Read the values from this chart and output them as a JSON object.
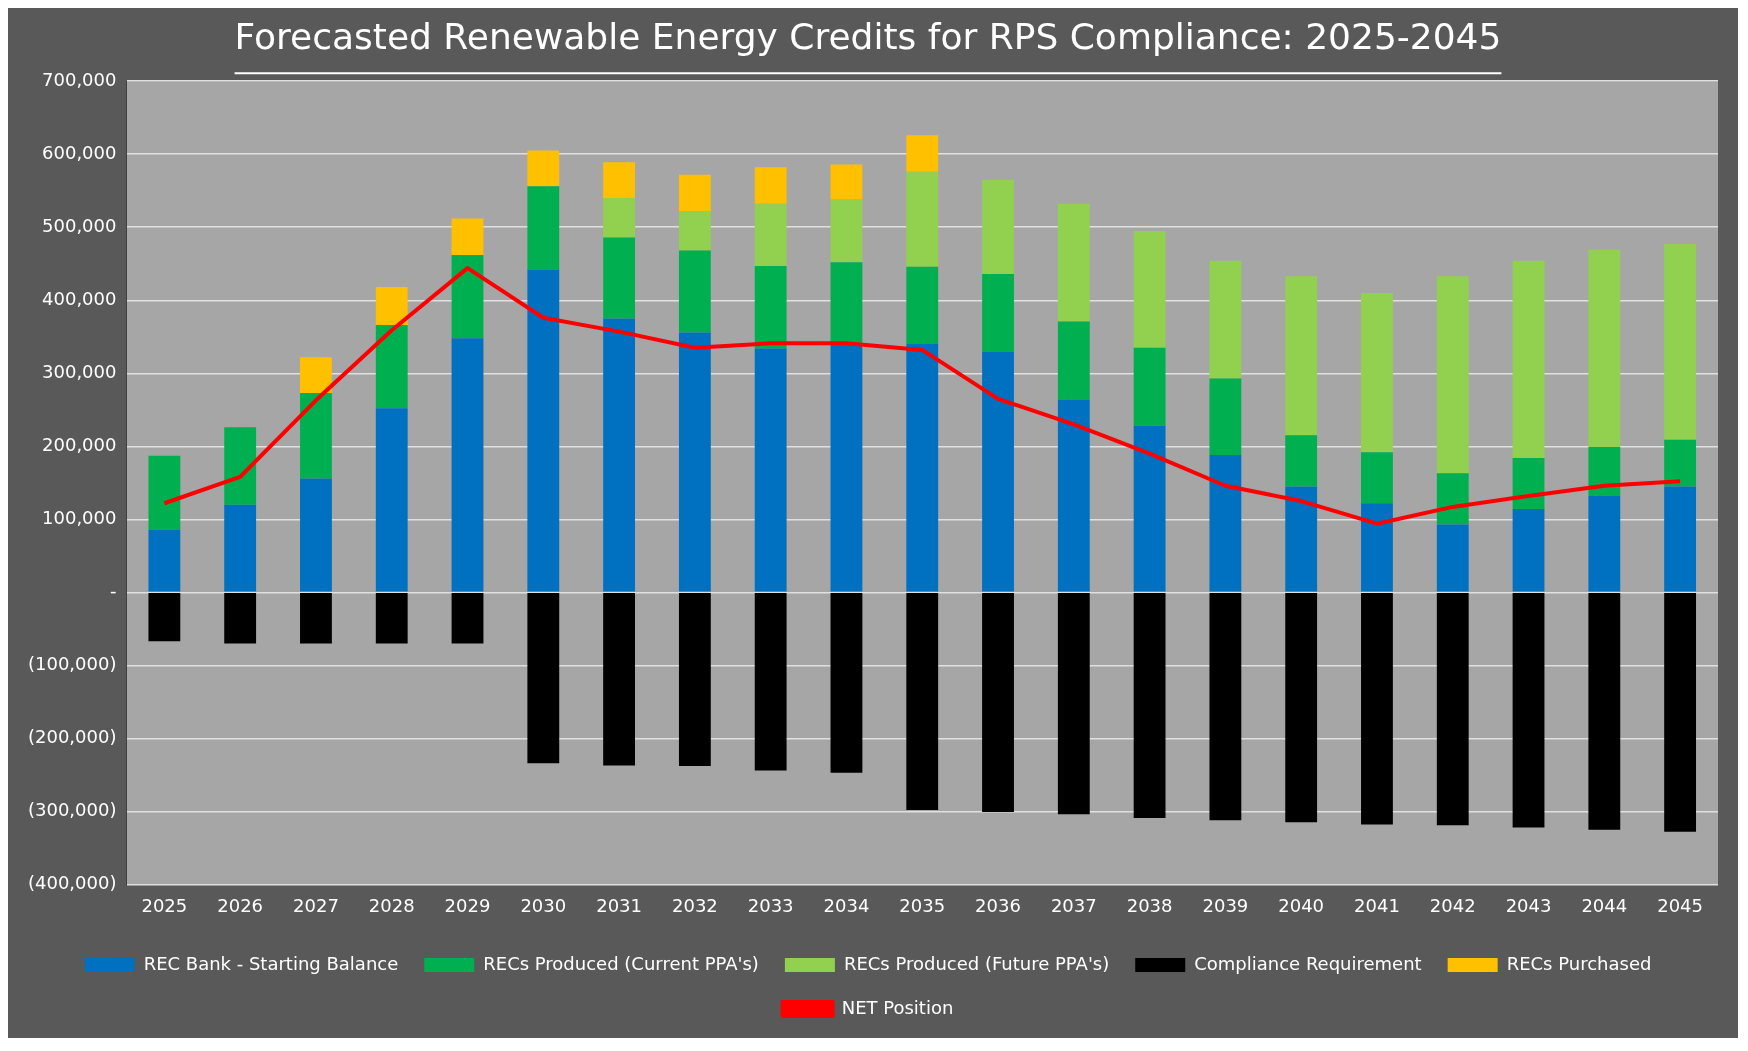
{
  "chart_data": {
    "type": "bar",
    "stacked": true,
    "title": "Forecasted Renewable Energy Credits for RPS Compliance: 2025-2045",
    "categories": [
      "2025",
      "2026",
      "2027",
      "2028",
      "2029",
      "2030",
      "2031",
      "2032",
      "2033",
      "2034",
      "2035",
      "2036",
      "2037",
      "2038",
      "2039",
      "2040",
      "2041",
      "2042",
      "2043",
      "2044",
      "2045"
    ],
    "series": [
      {
        "name": "REC Bank - Starting Balance",
        "color": "#0070c0",
        "values": [
          86000,
          120000,
          156000,
          252000,
          348000,
          442000,
          375000,
          356000,
          334000,
          340000,
          340000,
          329000,
          264000,
          228000,
          188000,
          145000,
          122000,
          93000,
          114000,
          132000,
          145000
        ]
      },
      {
        "name": "RECs Produced (Current PPA's)",
        "color": "#00b050",
        "values": [
          101000,
          106000,
          117000,
          114000,
          114000,
          114000,
          111000,
          112000,
          113000,
          112000,
          106000,
          107000,
          107000,
          107000,
          105000,
          70000,
          70000,
          70000,
          70000,
          67000,
          64000
        ]
      },
      {
        "name": "RECs Produced (Future PPA's)",
        "color": "#92d050",
        "values": [
          0,
          0,
          0,
          0,
          0,
          0,
          54000,
          54000,
          85000,
          86000,
          130000,
          129000,
          161000,
          160000,
          161000,
          218000,
          218000,
          270000,
          270000,
          270000,
          268000
        ]
      },
      {
        "name": "Compliance Requirement",
        "color": "#000000",
        "values": [
          -67000,
          -70000,
          -70000,
          -70000,
          -70000,
          -234000,
          -237000,
          -238000,
          -244000,
          -247000,
          -298000,
          -301000,
          -304000,
          -309000,
          -312000,
          -315000,
          -318000,
          -319000,
          -322000,
          -325000,
          -328000
        ]
      },
      {
        "name": "RECs Purchased",
        "color": "#ffc000",
        "values": [
          0,
          0,
          49000,
          52000,
          50000,
          49000,
          49000,
          50000,
          50000,
          48000,
          50000,
          0,
          0,
          0,
          0,
          0,
          0,
          0,
          0,
          0,
          0
        ]
      },
      {
        "name": "NET Position",
        "type": "line",
        "color": "#ff0000",
        "values": [
          122000,
          158000,
          263000,
          359000,
          444000,
          376000,
          357000,
          335000,
          341000,
          341000,
          332000,
          265000,
          230000,
          190000,
          146000,
          125000,
          94000,
          117000,
          132000,
          146000,
          152000
        ]
      }
    ],
    "ylim": [
      -400000,
      700000
    ],
    "yticks": [
      {
        "value": -400000,
        "label": "(400,000)"
      },
      {
        "value": -300000,
        "label": "(300,000)"
      },
      {
        "value": -200000,
        "label": "(200,000)"
      },
      {
        "value": -100000,
        "label": "(100,000)"
      },
      {
        "value": 0,
        "label": "-"
      },
      {
        "value": 100000,
        "label": "100,000"
      },
      {
        "value": 200000,
        "label": "200,000"
      },
      {
        "value": 300000,
        "label": "300,000"
      },
      {
        "value": 400000,
        "label": "400,000"
      },
      {
        "value": 500000,
        "label": "500,000"
      },
      {
        "value": 600000,
        "label": "600,000"
      },
      {
        "value": 700000,
        "label": "700,000"
      }
    ],
    "grid": "y",
    "legend": "bottom",
    "marker": "none",
    "line_style": "solid"
  }
}
